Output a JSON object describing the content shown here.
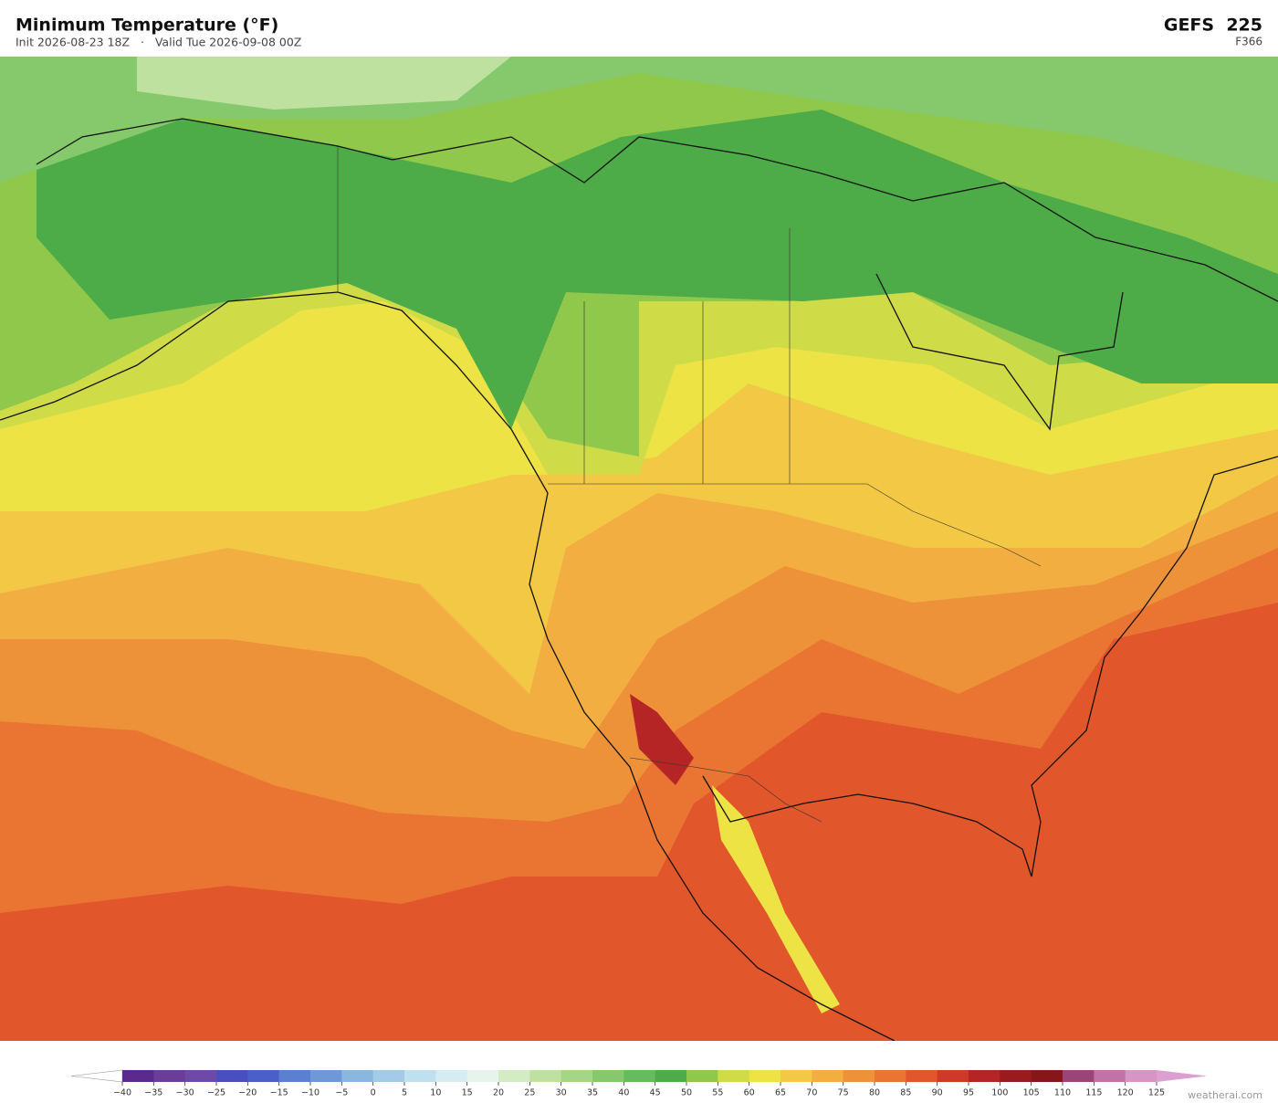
{
  "header": {
    "title": "Minimum Temperature  (°F)",
    "subtitle": "Init 2026-08-23 18Z   ·   Valid Tue 2026-09-08 00Z",
    "model": "GEFS  225",
    "forecast_hour": "F366"
  },
  "colorbar": {
    "ticks": [
      {
        "value": -40,
        "label": "−40"
      },
      {
        "value": -35,
        "label": "−35"
      },
      {
        "value": -30,
        "label": "−30"
      },
      {
        "value": -25,
        "label": "−25"
      },
      {
        "value": -20,
        "label": "−20"
      },
      {
        "value": -15,
        "label": "−15"
      },
      {
        "value": -10,
        "label": "−10"
      },
      {
        "value": -5,
        "label": "−5"
      },
      0,
      5,
      10,
      15,
      20,
      25,
      30,
      35,
      40,
      45,
      50,
      55,
      60,
      65,
      70,
      75,
      80,
      85,
      90,
      95,
      100,
      105,
      110,
      115,
      120,
      125
    ],
    "colors": [
      "#5b2a8f",
      "#6a3d9a",
      "#6e4aa8",
      "#4a4fbf",
      "#4a5fc8",
      "#5b7fd1",
      "#6f98d8",
      "#8ab7e0",
      "#a3cbe8",
      "#bfe0ef",
      "#d5ecf2",
      "#e6f4ec",
      "#d4ecc4",
      "#bfe19f",
      "#a5d686",
      "#86c96c",
      "#66bb5c",
      "#4eac48",
      "#8fc84a",
      "#cfdc48",
      "#ede345",
      "#f3c845",
      "#f2ae40",
      "#ee923a",
      "#ea7533",
      "#e2562b",
      "#cf3a28",
      "#b52525",
      "#9a1b1e",
      "#86161a",
      "#9c4478",
      "#c172a6",
      "#d795c4"
    ],
    "under_color": "#ffffff",
    "over_color": "#dba0d0"
  },
  "watermark": "weatherai.com"
}
